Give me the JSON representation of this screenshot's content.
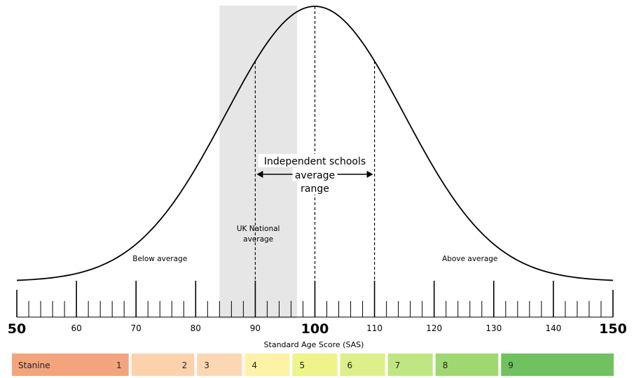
{
  "chart_data": {
    "type": "area",
    "x_axis": {
      "min": 50,
      "max": 150,
      "major_step": 10,
      "minor_step": 2,
      "tick_labels": [
        "50",
        "60",
        "70",
        "80",
        "90",
        "100",
        "110",
        "120",
        "130",
        "140",
        "150"
      ],
      "label": "Standard Age Score (SAS)"
    },
    "curve": {
      "distribution": "normal",
      "mean": 100,
      "sd": 15
    },
    "marker_lines": [
      90,
      100,
      110
    ],
    "shaded_band": {
      "from": 84,
      "to": 97,
      "color": "#e6e6e6",
      "label_lines": [
        "UK National",
        "average"
      ]
    },
    "range_arrow": {
      "from": 90,
      "to": 110,
      "label_lines": [
        "Independent schools",
        "average",
        "range"
      ]
    },
    "annotations": {
      "below": "Below average",
      "above": "Above average"
    },
    "stanine_label": "Stanine",
    "stanines": [
      {
        "label": "1",
        "from": 50,
        "to": 69,
        "color": "#f4a47c"
      },
      {
        "label": "2",
        "from": 69,
        "to": 80,
        "color": "#fcd2ad"
      },
      {
        "label": "3",
        "from": 80,
        "to": 88,
        "color": "#fcd7b4"
      },
      {
        "label": "4",
        "from": 88,
        "to": 96,
        "color": "#fdf2a6"
      },
      {
        "label": "5",
        "from": 96,
        "to": 104,
        "color": "#eef38a"
      },
      {
        "label": "6",
        "from": 104,
        "to": 112,
        "color": "#dcef88"
      },
      {
        "label": "7",
        "from": 112,
        "to": 120,
        "color": "#bfe781"
      },
      {
        "label": "8",
        "from": 120,
        "to": 131,
        "color": "#9fd871"
      },
      {
        "label": "9",
        "from": 131,
        "to": 150,
        "color": "#6fc25e"
      }
    ]
  }
}
